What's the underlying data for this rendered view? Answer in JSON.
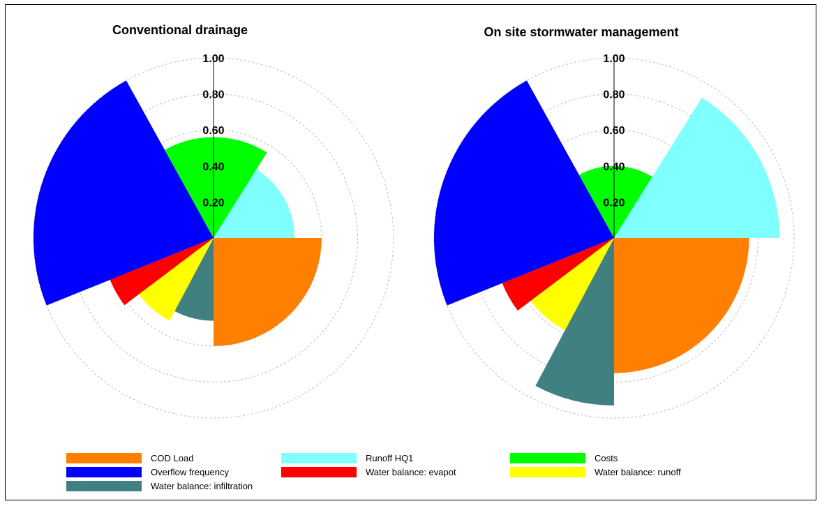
{
  "chart_data": [
    {
      "type": "polar-area",
      "title": "Conventional drainage",
      "rlim": [
        0,
        1
      ],
      "ticks": [
        "0.20",
        "0.40",
        "0.60",
        "0.80",
        "1.00"
      ],
      "categories": [
        "COD Load",
        "Water balance: infiltration",
        "Water balance: runoff",
        "Water balance: evapot",
        "Overflow frequency",
        "Costs",
        "Runoff HQ1"
      ],
      "values": [
        0.6,
        0.46,
        0.52,
        0.62,
        1.0,
        0.56,
        0.45
      ]
    },
    {
      "type": "polar-area",
      "title": "On site stormwater management",
      "rlim": [
        0,
        1
      ],
      "ticks": [
        "0.20",
        "0.40",
        "0.60",
        "0.80",
        "1.00"
      ],
      "categories": [
        "COD Load",
        "Water balance: infiltration",
        "Water balance: runoff",
        "Water balance: evapot",
        "Overflow frequency",
        "Costs",
        "Runoff HQ1"
      ],
      "values": [
        0.75,
        0.93,
        0.58,
        0.67,
        1.0,
        0.4,
        0.92
      ]
    }
  ],
  "legend": [
    {
      "label": "COD Load",
      "color": "#ff8000"
    },
    {
      "label": "Runoff HQ1",
      "color": "#80ffff"
    },
    {
      "label": "Costs",
      "color": "#00ff00"
    },
    {
      "label": "Overflow frequency",
      "color": "#0000ff"
    },
    {
      "label": "Water balance: evapot",
      "color": "#ff0000"
    },
    {
      "label": "Water balance: runoff",
      "color": "#ffff00"
    },
    {
      "label": "Water balance: infiltration",
      "color": "#408080"
    }
  ],
  "colors": {
    "COD Load": "#ff8000",
    "Water balance: infiltration": "#408080",
    "Water balance: runoff": "#ffff00",
    "Water balance: evapot": "#ff0000",
    "Overflow frequency": "#0000ff",
    "Costs": "#00ff00",
    "Runoff HQ1": "#80ffff"
  }
}
